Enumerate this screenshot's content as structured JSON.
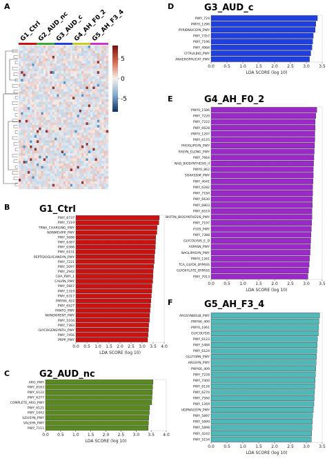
{
  "panel_letters": {
    "a": "A",
    "b": "B",
    "c": "C",
    "d": "D",
    "e": "E",
    "f": "F"
  },
  "colors": {
    "G1": "#cc1111",
    "G2": "#5a8a1e",
    "G3": "#1f3fe0",
    "G4": "#9b28c8",
    "G5": "#4fb8b8"
  },
  "heatmap": {
    "group_labels": [
      "G1_Ctrl",
      "G2_AUD_nc",
      "G3_AUD_c",
      "G4_AH_F0_2",
      "G5_AH_F3_4"
    ],
    "group_colors": [
      "#cc1111",
      "#3aa832",
      "#1f3fe0",
      "#c8cc22",
      "#cc33cc"
    ],
    "colorbar_ticks": [
      "5",
      "0",
      "-5"
    ]
  },
  "chart_data": [
    {
      "type": "bar",
      "orientation": "horizontal",
      "title": "G1_Ctrl",
      "xlabel": "LDA SCORE (log 10)",
      "xlim": [
        0,
        4.0
      ],
      "xticks": [
        "0.0",
        "0.5",
        "1.0",
        "1.5",
        "2.0",
        "2.5",
        "3.0",
        "3.5",
        "4.0"
      ],
      "categories": [
        "PWY_6737",
        "PWY_7219",
        "TRNA_CHARGING_PWY",
        "NONMEVIPP_PWY",
        "PWY_5686",
        "PWY_6387",
        "PWY_6386",
        "PWY_6151",
        "PEPTIDOGLYCANSYN_PWY",
        "PWY_7221",
        "PWY_5097",
        "PWY_2942",
        "COA_PWY_1",
        "CALVIN_PWY",
        "PWY_5667",
        "PWY_1319",
        "PWY_6317",
        "PWY66_422",
        "PWY_6527",
        "PANTO_PWY",
        "NONOXIPENT_PWY",
        "PWY_5104",
        "PWY_7383",
        "GLYCOGENSYNTH_PWY",
        "PWY_7456",
        "PRPP_PWY"
      ],
      "values": [
        3.78,
        3.76,
        3.68,
        3.67,
        3.62,
        3.61,
        3.6,
        3.58,
        3.56,
        3.55,
        3.52,
        3.5,
        3.49,
        3.48,
        3.45,
        3.44,
        3.42,
        3.4,
        3.38,
        3.36,
        3.34,
        3.33,
        3.3,
        3.29,
        3.27,
        3.25
      ]
    },
    {
      "type": "bar",
      "orientation": "horizontal",
      "title": "G2_AUD_nc",
      "xlabel": "LDA SCORE (log 10)",
      "xlim": [
        0,
        4.0
      ],
      "xticks": [
        "0.0",
        "0.5",
        "1.0",
        "1.5",
        "2.0",
        "2.5",
        "3.0",
        "3.5",
        "4.0"
      ],
      "categories": [
        "ARO_PWY",
        "PWY_6163",
        "PWY_6122",
        "PWY_6277",
        "COMPLETE_ARO_PWY",
        "PWY_6121",
        "PWY_1042",
        "ILEUSYN_PWY",
        "VALSYN_PWY",
        "PWY_7111"
      ],
      "values": [
        3.56,
        3.55,
        3.54,
        3.53,
        3.52,
        3.45,
        3.44,
        3.42,
        3.41,
        3.4
      ]
    },
    {
      "type": "bar",
      "orientation": "horizontal",
      "title": "G3_AUD_c",
      "xlabel": "LDA SCORE (log 10)",
      "xlim": [
        0,
        3.5
      ],
      "xticks": [
        "0.0",
        "0.5",
        "1.0",
        "1.5",
        "2.0",
        "2.5",
        "3.0",
        "3.5"
      ],
      "categories": [
        "PWY_724",
        "PWY0_1296",
        "PYRIDNUCSYN_PWY",
        "PWY_7357",
        "PWY_7196",
        "PWY_4984",
        "CITRULBIO_PWY",
        "ANAEROFRUCAT_PWY"
      ],
      "values": [
        3.35,
        3.3,
        3.28,
        3.22,
        3.2,
        3.18,
        3.14,
        3.1
      ]
    },
    {
      "type": "bar",
      "orientation": "horizontal",
      "title": "G4_AH_F0_2",
      "xlabel": "LDA SCORE (log 10)",
      "xlim": [
        0,
        3.5
      ],
      "xticks": [
        "0.0",
        "0.5",
        "1.0",
        "1.5",
        "2.0",
        "2.5",
        "3.0",
        "3.5"
      ],
      "categories": [
        "PWY0_1586",
        "PWY_7220",
        "PWY_7222",
        "PWY_6628",
        "PWY0_1297",
        "PWY_6125",
        "PHOSLIPSYN_PWY",
        "FASYN_ELONG_PWY",
        "PWY_7664",
        "NAD_BIOSYNTHESIS_II",
        "PWY0_862",
        "SO4ASSIM_PWY",
        "PWY_4041",
        "PWY_6282",
        "PWY_7184",
        "PWY_6630",
        "PWY_6803",
        "PWY_6519",
        "BIOTIN_BIOSYNTHESIS_PWY",
        "PWY_7197",
        "P105_PWY",
        "PWY_7388",
        "GLYCOLYSIS_E_D",
        "ASPASN_PWY",
        "NAGLIPASYN_PWY",
        "PWY0_1261",
        "TCA_GLYOX_BYPASS",
        "GLYOXYLATE_BYPASS",
        "PWY_7013"
      ],
      "values": [
        3.33,
        3.3,
        3.28,
        3.28,
        3.27,
        3.27,
        3.26,
        3.25,
        3.24,
        3.23,
        3.22,
        3.22,
        3.21,
        3.2,
        3.2,
        3.19,
        3.19,
        3.18,
        3.18,
        3.17,
        3.16,
        3.15,
        3.14,
        3.13,
        3.12,
        3.1,
        3.09,
        3.07,
        3.05
      ]
    },
    {
      "type": "bar",
      "orientation": "horizontal",
      "title": "G5_AH_F3_4",
      "xlabel": "LDA SCORE (log 10)",
      "xlim": [
        0,
        3.5
      ],
      "xticks": [
        "0.0",
        "0.5",
        "1.0",
        "1.5",
        "2.0",
        "2.5",
        "3.0",
        "3.5"
      ],
      "categories": [
        "ARGSYNBSUB_PWY",
        "PWY66_400",
        "PWY0_1061",
        "GLYCOLYSIS",
        "PWY_6123",
        "PWY_5484",
        "PWY_6124",
        "GLUTORN_PWY",
        "ARGSYN_PWY",
        "PWY66_409",
        "PWY_7228",
        "PWY_7400",
        "PWY_6126",
        "PWY_6270",
        "PWY_7560",
        "PWY_1269",
        "UDPNAGSYN_PWY",
        "PWY_5897",
        "PWY_5899",
        "PWY_5898",
        "PWY_4242",
        "PWY_5154"
      ],
      "values": [
        3.42,
        3.4,
        3.39,
        3.38,
        3.35,
        3.34,
        3.33,
        3.32,
        3.31,
        3.3,
        3.29,
        3.28,
        3.27,
        3.26,
        3.25,
        3.24,
        3.22,
        3.2,
        3.19,
        3.18,
        3.17,
        3.16
      ]
    }
  ]
}
